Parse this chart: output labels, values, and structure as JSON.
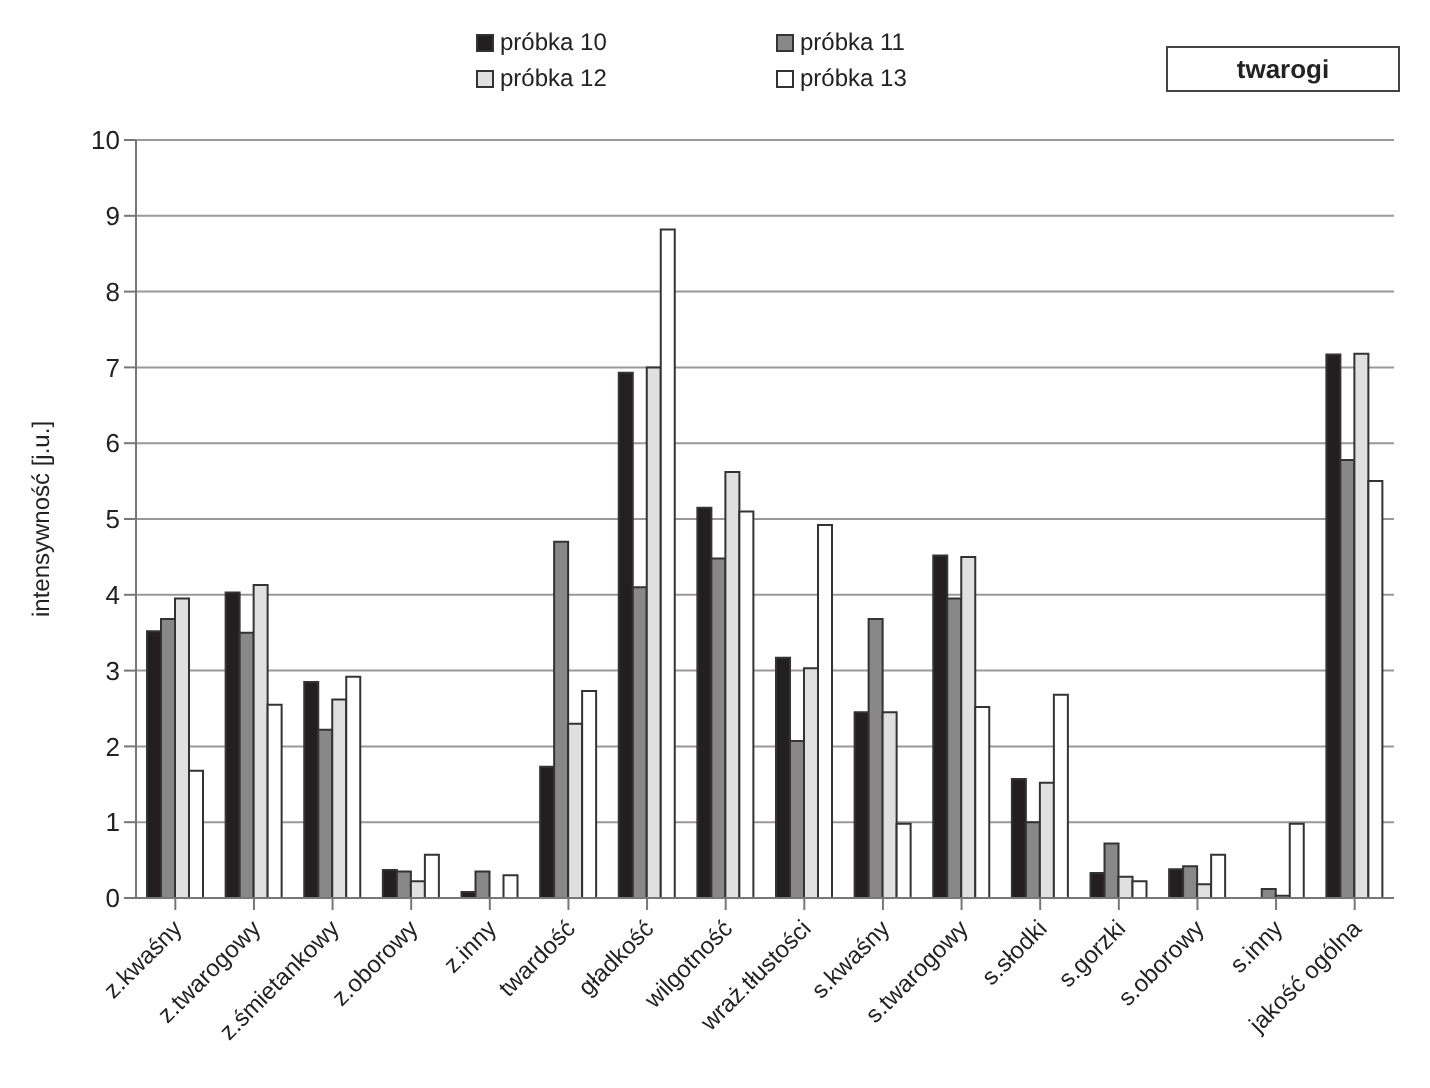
{
  "chart_data": {
    "type": "bar",
    "ylabel": "intensywność [j.u.]",
    "annotations": [
      "twarogi"
    ],
    "categories": [
      "z.kwaśny",
      "z.twarogowy",
      "z.śmietankowy",
      "z.oborowy",
      "z.inny",
      "twardość",
      "gładkość",
      "wilgotność",
      "wraż.tłustości",
      "s.kwaśny",
      "s.twarogowy",
      "s.słodki",
      "s.gorzki",
      "s.oborowy",
      "s.inny",
      "jakość ogólna"
    ],
    "series": [
      {
        "name": "próbka 10",
        "color": "#231f20",
        "values": [
          3.52,
          4.03,
          2.85,
          0.37,
          0.08,
          1.73,
          6.93,
          5.15,
          3.17,
          2.45,
          4.52,
          1.57,
          0.33,
          0.38,
          0,
          7.17
        ]
      },
      {
        "name": "próbka 11",
        "color": "#888888",
        "values": [
          3.68,
          3.5,
          2.22,
          0.35,
          0.35,
          4.7,
          4.1,
          4.48,
          2.07,
          3.68,
          3.95,
          1.0,
          0.72,
          0.42,
          0.12,
          5.78
        ]
      },
      {
        "name": "próbka 12",
        "color": "#e0e0e0",
        "values": [
          3.95,
          4.13,
          2.62,
          0.22,
          0,
          2.3,
          7.0,
          5.62,
          3.03,
          2.45,
          4.5,
          1.52,
          0.28,
          0.18,
          0.03,
          7.18
        ]
      },
      {
        "name": "próbka 13",
        "color": "#ffffff",
        "values": [
          1.68,
          2.55,
          2.92,
          0.57,
          0.3,
          2.73,
          8.82,
          5.1,
          4.92,
          0.98,
          2.52,
          2.68,
          0.22,
          0.57,
          0.98,
          5.5
        ]
      }
    ],
    "ylim": [
      0,
      10
    ],
    "yticks": [
      0,
      1,
      2,
      3,
      4,
      5,
      6,
      7,
      8,
      9,
      10
    ],
    "grid": "y",
    "legend": "top"
  }
}
